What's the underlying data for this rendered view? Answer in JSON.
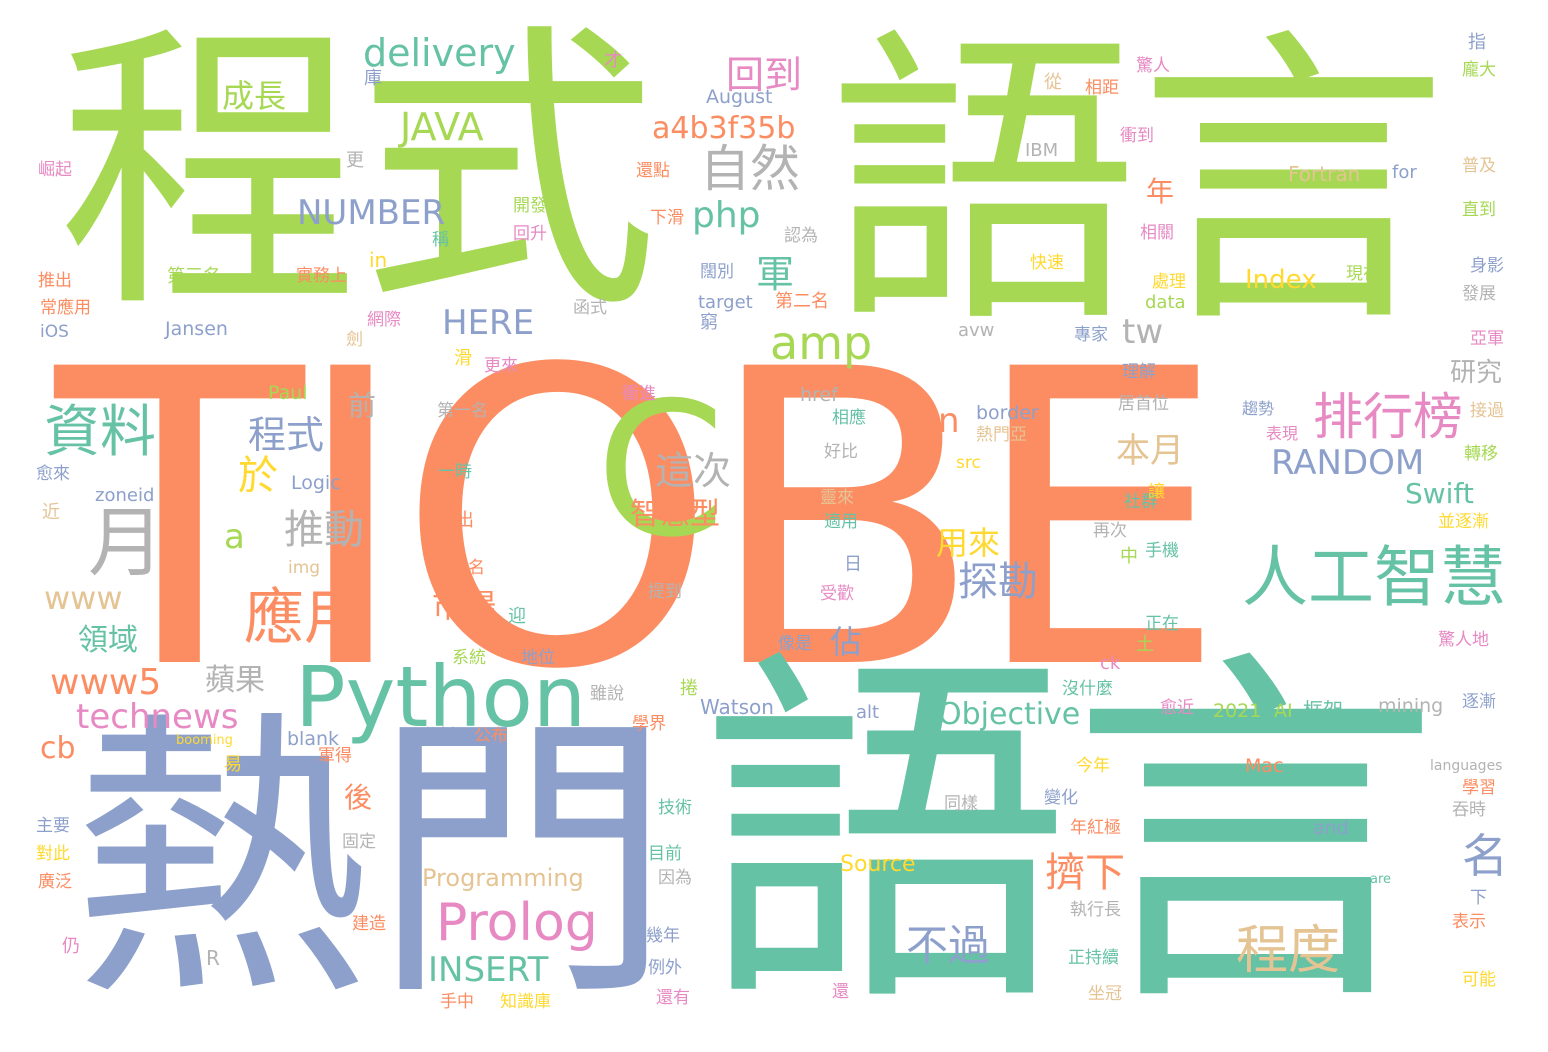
{
  "palette": {
    "orange": "#fc8d62",
    "green": "#a6d854",
    "teal": "#66c2a5",
    "blue": "#8da0cb",
    "pink": "#e78ac3",
    "gray": "#b3b3b3",
    "yellow": "#ffd92f",
    "tan": "#e5c494"
  },
  "words": [
    {
      "text": "TIOBE",
      "color": "orange"
    },
    {
      "text": "程式",
      "color": "green"
    },
    {
      "text": "語言",
      "color": "green"
    },
    {
      "text": "熱門",
      "color": "blue"
    },
    {
      "text": "語言",
      "color": "teal"
    },
    {
      "text": "C",
      "color": "green"
    },
    {
      "text": "Python",
      "color": "teal"
    },
    {
      "text": "人工智慧",
      "color": "teal"
    },
    {
      "text": "Prolog",
      "color": "pink"
    },
    {
      "text": "月",
      "color": "gray"
    },
    {
      "text": "應用",
      "color": "orange"
    },
    {
      "text": "資料",
      "color": "teal"
    },
    {
      "text": "delivery",
      "color": "teal"
    },
    {
      "text": "JAVA",
      "color": "green"
    },
    {
      "text": "amp",
      "color": "green"
    },
    {
      "text": "自然",
      "color": "gray"
    },
    {
      "text": "排行榜",
      "color": "pink"
    },
    {
      "text": "程度",
      "color": "tan"
    },
    {
      "text": "NUMBER",
      "color": "blue"
    },
    {
      "text": "RANDOM",
      "color": "blue"
    },
    {
      "text": "INSERT",
      "color": "teal"
    },
    {
      "text": "Objective",
      "color": "teal"
    },
    {
      "text": "technews",
      "color": "pink"
    },
    {
      "text": "www5",
      "color": "orange"
    },
    {
      "text": "a4b3f35b",
      "color": "orange"
    },
    {
      "text": "php",
      "color": "teal"
    },
    {
      "text": "HERE",
      "color": "blue"
    },
    {
      "text": "程式",
      "color": "blue"
    },
    {
      "text": "推動",
      "color": "gray"
    },
    {
      "text": "探勘",
      "color": "blue"
    },
    {
      "text": "不過",
      "color": "blue"
    },
    {
      "text": "擠下",
      "color": "orange"
    },
    {
      "text": "名",
      "color": "blue"
    },
    {
      "text": "回到",
      "color": "pink"
    },
    {
      "text": "成長",
      "color": "green"
    },
    {
      "text": "這次",
      "color": "gray"
    },
    {
      "text": "於",
      "color": "yellow"
    },
    {
      "text": "市場",
      "color": "orange"
    },
    {
      "text": "智慧型",
      "color": "orange"
    },
    {
      "text": "用來",
      "color": "yellow"
    },
    {
      "text": "本月",
      "color": "tan"
    },
    {
      "text": "Swift",
      "color": "teal"
    },
    {
      "text": "tw",
      "color": "gray"
    },
    {
      "text": "軍",
      "color": "teal"
    },
    {
      "text": "領域",
      "color": "teal"
    },
    {
      "text": "蘋果",
      "color": "gray"
    },
    {
      "text": "www",
      "color": "tan"
    },
    {
      "text": "Index",
      "color": "yellow"
    },
    {
      "text": "cb",
      "color": "orange"
    },
    {
      "text": "a",
      "color": "green"
    },
    {
      "text": "n",
      "color": "orange"
    },
    {
      "text": "佔",
      "color": "blue"
    },
    {
      "text": "後",
      "color": "orange"
    },
    {
      "text": "前",
      "color": "gray"
    },
    {
      "text": "年",
      "color": "orange"
    },
    {
      "text": "研究",
      "color": "gray"
    },
    {
      "text": "Programming",
      "color": "tan"
    },
    {
      "text": "Watson",
      "color": "blue"
    },
    {
      "text": "Source",
      "color": "yellow"
    },
    {
      "text": "Fortran",
      "color": "tan"
    },
    {
      "text": "August",
      "color": "blue"
    },
    {
      "text": "Jansen",
      "color": "blue"
    },
    {
      "text": "mining",
      "color": "gray"
    },
    {
      "text": "2021",
      "color": "green"
    },
    {
      "text": "AI",
      "color": "green"
    },
    {
      "text": "框架",
      "color": "teal"
    },
    {
      "text": "Logic",
      "color": "blue"
    },
    {
      "text": "Paul",
      "color": "green"
    },
    {
      "text": "zoneid",
      "color": "blue"
    },
    {
      "text": "border",
      "color": "blue"
    },
    {
      "text": "href",
      "color": "gray"
    },
    {
      "text": "blank",
      "color": "blue"
    },
    {
      "text": "alt",
      "color": "blue"
    },
    {
      "text": "and",
      "color": "blue"
    },
    {
      "text": "Mac",
      "color": "orange"
    },
    {
      "text": "target",
      "color": "blue"
    },
    {
      "text": "data",
      "color": "green"
    },
    {
      "text": "IBM",
      "color": "gray"
    },
    {
      "text": "for",
      "color": "blue"
    },
    {
      "text": "in",
      "color": "yellow"
    },
    {
      "text": "iOS",
      "color": "blue"
    },
    {
      "text": "img",
      "color": "tan"
    },
    {
      "text": "src",
      "color": "yellow"
    },
    {
      "text": "ck",
      "color": "pink"
    },
    {
      "text": "R",
      "color": "gray"
    },
    {
      "text": "avw",
      "color": "gray"
    },
    {
      "text": "booming",
      "color": "yellow"
    },
    {
      "text": "languages",
      "color": "gray"
    },
    {
      "text": "are",
      "color": "teal"
    },
    {
      "text": "第三名",
      "color": "green"
    },
    {
      "text": "第二名",
      "color": "orange"
    },
    {
      "text": "第一名",
      "color": "gray"
    },
    {
      "text": "實務上",
      "color": "orange"
    },
    {
      "text": "推出",
      "color": "orange"
    },
    {
      "text": "常應用",
      "color": "orange"
    },
    {
      "text": "網際",
      "color": "pink"
    },
    {
      "text": "開發",
      "color": "green"
    },
    {
      "text": "回升",
      "color": "pink"
    },
    {
      "text": "下滑",
      "color": "orange"
    },
    {
      "text": "還點",
      "color": "orange"
    },
    {
      "text": "認為",
      "color": "gray"
    },
    {
      "text": "快速",
      "color": "yellow"
    },
    {
      "text": "現在",
      "color": "green"
    },
    {
      "text": "處理",
      "color": "yellow"
    },
    {
      "text": "相關",
      "color": "pink"
    },
    {
      "text": "衝到",
      "color": "pink"
    },
    {
      "text": "相距",
      "color": "orange"
    },
    {
      "text": "驚人",
      "color": "pink"
    },
    {
      "text": "從",
      "color": "tan"
    },
    {
      "text": "普及",
      "color": "tan"
    },
    {
      "text": "直到",
      "color": "green"
    },
    {
      "text": "身影",
      "color": "blue"
    },
    {
      "text": "發展",
      "color": "gray"
    },
    {
      "text": "亞軍",
      "color": "pink"
    },
    {
      "text": "接過",
      "color": "tan"
    },
    {
      "text": "趨勢",
      "color": "blue"
    },
    {
      "text": "表現",
      "color": "pink"
    },
    {
      "text": "轉移",
      "color": "green"
    },
    {
      "text": "並逐漸",
      "color": "yellow"
    },
    {
      "text": "居首位",
      "color": "gray"
    },
    {
      "text": "熱門亞",
      "color": "tan"
    },
    {
      "text": "專家",
      "color": "blue"
    },
    {
      "text": "理解",
      "color": "blue"
    },
    {
      "text": "更來",
      "color": "pink"
    },
    {
      "text": "衝進",
      "color": "pink"
    },
    {
      "text": "最初",
      "color": "orange"
    },
    {
      "text": "一時",
      "color": "teal"
    },
    {
      "text": "相應",
      "color": "teal"
    },
    {
      "text": "好比",
      "color": "gray"
    },
    {
      "text": "靈來",
      "color": "tan"
    },
    {
      "text": "適用",
      "color": "teal"
    },
    {
      "text": "社群",
      "color": "teal"
    },
    {
      "text": "再次",
      "color": "gray"
    },
    {
      "text": "手機",
      "color": "teal"
    },
    {
      "text": "正在",
      "color": "teal"
    },
    {
      "text": "驚人地",
      "color": "pink"
    },
    {
      "text": "前三名",
      "color": "orange"
    },
    {
      "text": "提到",
      "color": "gray"
    },
    {
      "text": "受歡",
      "color": "pink"
    },
    {
      "text": "像是",
      "color": "blue"
    },
    {
      "text": "系統",
      "color": "green"
    },
    {
      "text": "地位",
      "color": "blue"
    },
    {
      "text": "沒什麼",
      "color": "teal"
    },
    {
      "text": "逐漸",
      "color": "blue"
    },
    {
      "text": "愈近",
      "color": "pink"
    },
    {
      "text": "雖說",
      "color": "gray"
    },
    {
      "text": "分析",
      "color": "blue"
    },
    {
      "text": "公布",
      "color": "orange"
    },
    {
      "text": "學界",
      "color": "orange"
    },
    {
      "text": "技術",
      "color": "teal"
    },
    {
      "text": "今年",
      "color": "yellow"
    },
    {
      "text": "變化",
      "color": "blue"
    },
    {
      "text": "同樣",
      "color": "gray"
    },
    {
      "text": "學習",
      "color": "orange"
    },
    {
      "text": "吞時",
      "color": "gray"
    },
    {
      "text": "年紅極",
      "color": "orange"
    },
    {
      "text": "固定",
      "color": "gray"
    },
    {
      "text": "目前",
      "color": "teal"
    },
    {
      "text": "因為",
      "color": "gray"
    },
    {
      "text": "主要",
      "color": "blue"
    },
    {
      "text": "對此",
      "color": "yellow"
    },
    {
      "text": "廣泛",
      "color": "orange"
    },
    {
      "text": "建造",
      "color": "orange"
    },
    {
      "text": "幾年",
      "color": "blue"
    },
    {
      "text": "例外",
      "color": "blue"
    },
    {
      "text": "手中",
      "color": "orange"
    },
    {
      "text": "知識庫",
      "color": "yellow"
    },
    {
      "text": "執行長",
      "color": "gray"
    },
    {
      "text": "正持續",
      "color": "teal"
    },
    {
      "text": "坐冠",
      "color": "tan"
    },
    {
      "text": "表示",
      "color": "orange"
    },
    {
      "text": "可能",
      "color": "yellow"
    },
    {
      "text": "還有",
      "color": "pink"
    },
    {
      "text": "下",
      "color": "blue"
    },
    {
      "text": "函式",
      "color": "gray"
    },
    {
      "text": "指",
      "color": "blue"
    },
    {
      "text": "龐大",
      "color": "green"
    },
    {
      "text": "更",
      "color": "gray"
    },
    {
      "text": "才",
      "color": "pink"
    },
    {
      "text": "庫",
      "color": "blue"
    },
    {
      "text": "崛起",
      "color": "pink"
    },
    {
      "text": "稱",
      "color": "teal"
    },
    {
      "text": "日",
      "color": "blue"
    },
    {
      "text": "中",
      "color": "green"
    },
    {
      "text": "土",
      "color": "green"
    },
    {
      "text": "出",
      "color": "orange"
    },
    {
      "text": "近",
      "color": "tan"
    },
    {
      "text": "愈來",
      "color": "blue"
    },
    {
      "text": "仍",
      "color": "pink"
    },
    {
      "text": "易",
      "color": "yellow"
    },
    {
      "text": "軍得",
      "color": "orange"
    },
    {
      "text": "捲",
      "color": "green"
    },
    {
      "text": "迎",
      "color": "teal"
    },
    {
      "text": "窮",
      "color": "blue"
    },
    {
      "text": "闊別",
      "color": "blue"
    },
    {
      "text": "劍",
      "color": "tan"
    },
    {
      "text": "滑",
      "color": "yellow"
    },
    {
      "text": "讓",
      "color": "yellow"
    },
    {
      "text": "還",
      "color": "pink"
    },
    {
      "text": "達",
      "color": "teal"
    }
  ]
}
